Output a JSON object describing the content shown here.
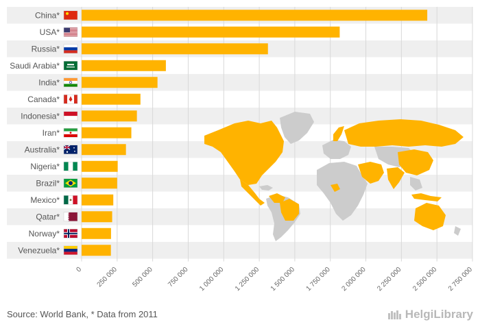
{
  "chart_data": {
    "type": "bar",
    "orientation": "horizontal",
    "categories": [
      "China*",
      "USA*",
      "Russia*",
      "Saudi Arabia*",
      "India*",
      "Canada*",
      "Indonesia*",
      "Iran*",
      "Australia*",
      "Nigeria*",
      "Brazil*",
      "Mexico*",
      "Qatar*",
      "Norway*",
      "Venezuela*"
    ],
    "flags": [
      "china",
      "usa",
      "russia",
      "saudi-arabia",
      "india",
      "canada",
      "indonesia",
      "iran",
      "australia",
      "nigeria",
      "brazil",
      "mexico",
      "qatar",
      "norway",
      "venezuela"
    ],
    "values": [
      2432000,
      1816000,
      1311000,
      593000,
      534000,
      414000,
      389000,
      350000,
      312000,
      254000,
      250000,
      223000,
      215000,
      207000,
      206000
    ],
    "xlim": [
      0,
      2750000
    ],
    "xticks": [
      0,
      250000,
      500000,
      750000,
      1000000,
      1250000,
      1500000,
      1750000,
      2000000,
      2250000,
      2500000,
      2750000
    ],
    "xtick_labels": [
      "0",
      "250 000",
      "500 000",
      "750 000",
      "1 000 000",
      "1 250 000",
      "1 500 000",
      "1 750 000",
      "2 000 000",
      "2 250 000",
      "2 500 000",
      "2 750 000"
    ],
    "grid": true,
    "title": "",
    "xlabel": "",
    "ylabel": ""
  },
  "colors": {
    "bar": "#ffb300",
    "map_highlight": "#ffb300",
    "map_base": "#cccccc",
    "row_band": "#efefef",
    "grid": "#d8d8d8"
  },
  "footer": {
    "source": "Source: World Bank, * Data from 2011"
  },
  "brand": {
    "icon": "helgi-library-logo-icon",
    "name": "HelgiLibrary"
  }
}
